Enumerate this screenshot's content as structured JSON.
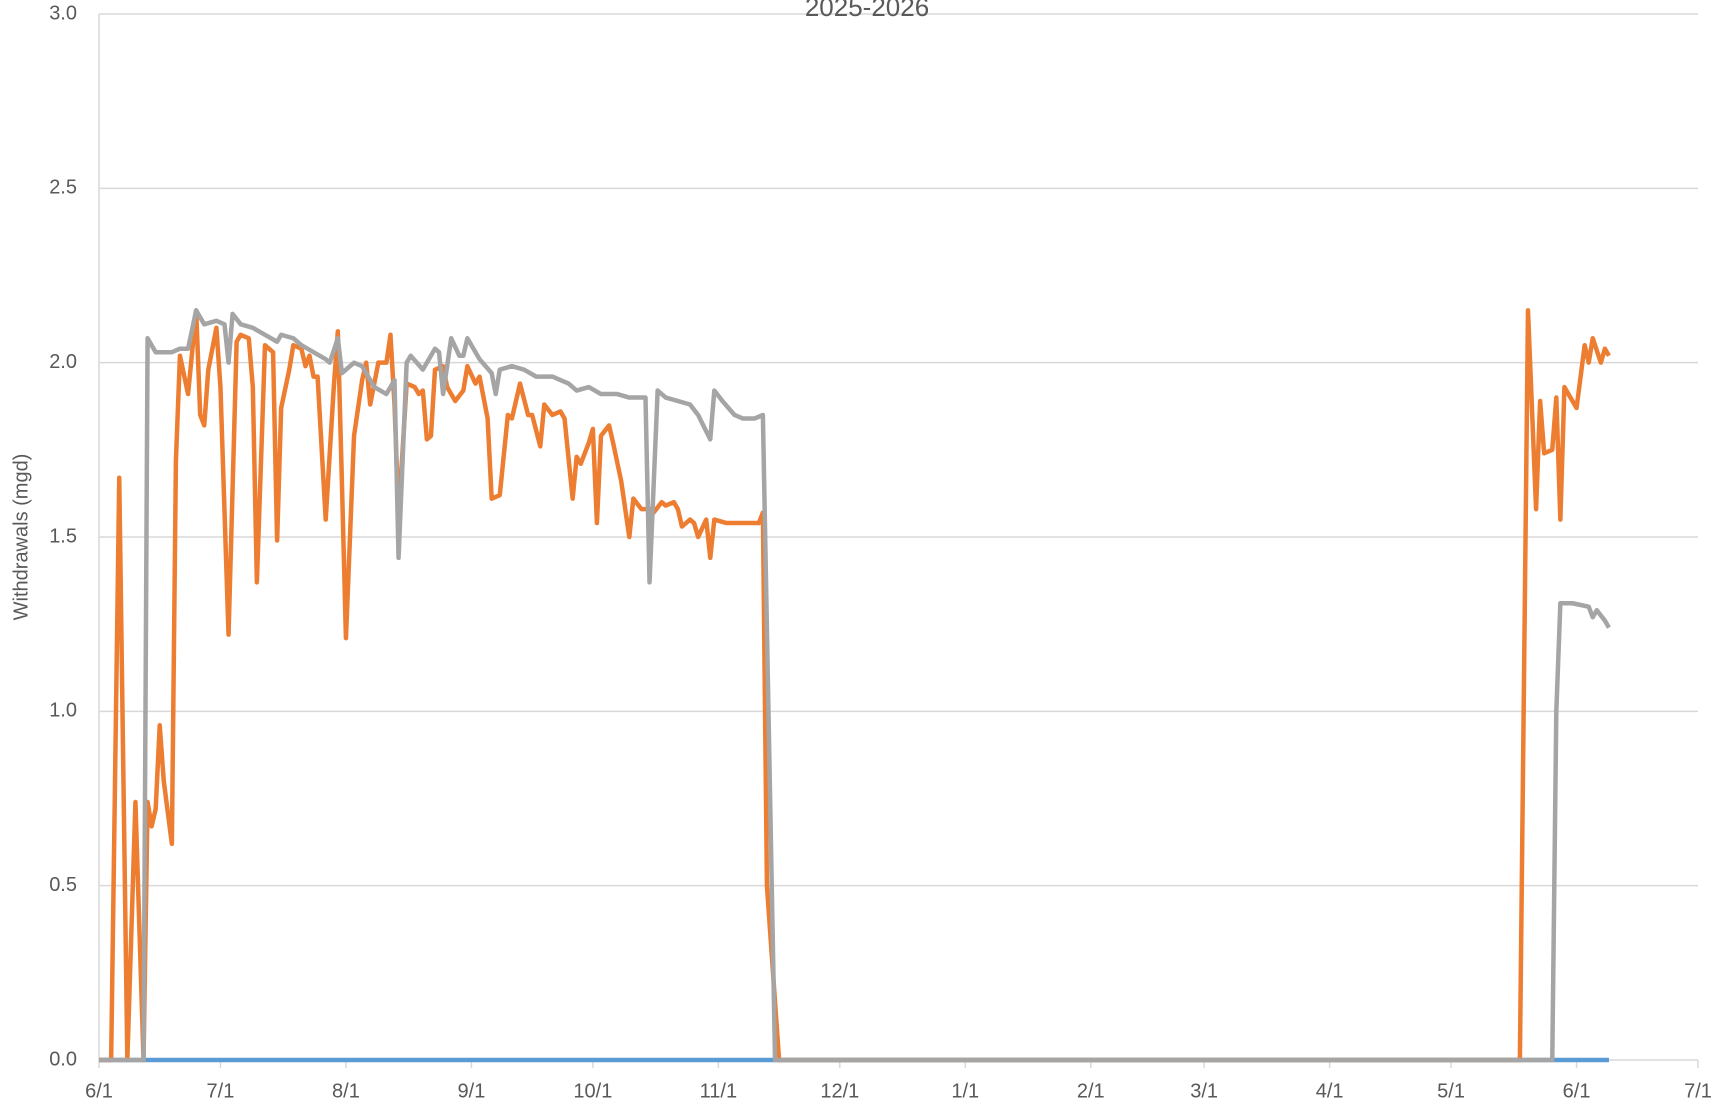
{
  "chart_data": {
    "type": "line",
    "title": "2025-2026",
    "y_label": "Withdrawals (mgd)",
    "xlim": [
      0,
      395
    ],
    "xticks": [
      {
        "value": 0,
        "label": "6/1"
      },
      {
        "value": 30,
        "label": "7/1"
      },
      {
        "value": 61,
        "label": "8/1"
      },
      {
        "value": 92,
        "label": "9/1"
      },
      {
        "value": 122,
        "label": "10/1"
      },
      {
        "value": 153,
        "label": "11/1"
      },
      {
        "value": 183,
        "label": "12/1"
      },
      {
        "value": 214,
        "label": "1/1"
      },
      {
        "value": 245,
        "label": "2/1"
      },
      {
        "value": 273,
        "label": "3/1"
      },
      {
        "value": 304,
        "label": "4/1"
      },
      {
        "value": 334,
        "label": "5/1"
      },
      {
        "value": 365,
        "label": "6/1"
      },
      {
        "value": 395,
        "label": "7/1"
      }
    ],
    "ylim": [
      0,
      3
    ],
    "yticks": [
      {
        "value": 0,
        "label": "0.0"
      },
      0.5,
      {
        "value": 1,
        "label": "1.0"
      },
      1.5,
      {
        "value": 2,
        "label": "2.0"
      },
      2.5,
      {
        "value": 3,
        "label": "3.0"
      }
    ],
    "grid": true,
    "series": [
      {
        "color": "#5b9bd5",
        "x": [
          0,
          373
        ],
        "values": [
          0,
          0
        ]
      },
      {
        "color": "#ed7d31",
        "x": [
          0,
          3,
          5,
          7,
          9,
          11,
          12,
          13,
          14,
          15,
          16,
          18,
          19,
          20,
          22,
          24,
          25,
          26,
          27,
          29,
          30,
          32,
          34,
          35,
          37,
          38,
          39,
          41,
          43,
          44,
          45,
          47,
          48,
          50,
          51,
          52,
          53,
          54,
          56,
          58,
          59,
          60,
          61,
          63,
          65,
          66,
          67,
          69,
          71,
          72,
          73,
          74,
          76,
          78,
          79,
          80,
          81,
          82,
          83,
          85,
          86,
          88,
          90,
          91,
          93,
          94,
          96,
          97,
          99,
          101,
          102,
          104,
          106,
          107,
          109,
          110,
          112,
          114,
          115,
          117,
          118,
          119,
          121,
          122,
          123,
          124,
          126,
          127,
          129,
          131,
          132,
          134,
          136,
          137,
          139,
          140,
          142,
          143,
          144,
          146,
          147,
          148,
          150,
          151,
          152,
          155,
          161,
          163,
          164,
          165,
          168,
          351,
          353,
          355,
          356,
          357,
          359,
          360,
          361,
          362,
          365,
          367,
          368,
          369,
          371,
          372,
          373
        ],
        "values": [
          0,
          0,
          1.67,
          0,
          0.74,
          0,
          0.74,
          0.67,
          0.72,
          0.96,
          0.8,
          0.62,
          1.72,
          2.02,
          1.91,
          2.15,
          1.85,
          1.82,
          1.98,
          2.1,
          1.93,
          1.22,
          2.06,
          2.08,
          2.07,
          1.93,
          1.37,
          2.05,
          2.03,
          1.49,
          1.87,
          1.98,
          2.05,
          2.04,
          1.99,
          2.02,
          1.96,
          1.96,
          1.55,
          1.93,
          2.09,
          1.66,
          1.21,
          1.79,
          1.95,
          2.0,
          1.88,
          2.0,
          2.0,
          2.08,
          1.88,
          1.56,
          1.94,
          1.93,
          1.91,
          1.92,
          1.78,
          1.79,
          1.98,
          1.99,
          1.93,
          1.89,
          1.92,
          1.99,
          1.94,
          1.96,
          1.84,
          1.61,
          1.62,
          1.85,
          1.84,
          1.94,
          1.85,
          1.85,
          1.76,
          1.88,
          1.85,
          1.86,
          1.84,
          1.61,
          1.73,
          1.71,
          1.77,
          1.81,
          1.54,
          1.79,
          1.82,
          1.77,
          1.66,
          1.5,
          1.61,
          1.58,
          1.58,
          1.57,
          1.6,
          1.59,
          1.6,
          1.58,
          1.53,
          1.55,
          1.54,
          1.5,
          1.55,
          1.44,
          1.55,
          1.54,
          1.54,
          1.54,
          1.57,
          0.5,
          0,
          0,
          2.15,
          1.58,
          1.89,
          1.74,
          1.75,
          1.9,
          1.55,
          1.93,
          1.87,
          2.05,
          2.0,
          2.07,
          2.0,
          2.04,
          2.02
        ]
      },
      {
        "color": "#a5a5a5",
        "x": [
          0,
          11,
          12,
          14,
          18,
          20,
          22,
          24,
          26,
          29,
          31,
          32,
          33,
          35,
          38,
          41,
          44,
          45,
          48,
          50,
          53,
          56,
          57,
          59,
          60,
          63,
          65,
          68,
          71,
          73,
          74,
          76,
          77,
          80,
          83,
          84,
          85,
          87,
          89,
          90,
          91,
          94,
          97,
          98,
          99,
          102,
          105,
          108,
          112,
          116,
          118,
          121,
          124,
          128,
          131,
          135,
          136,
          138,
          140,
          143,
          146,
          148,
          151,
          152,
          154,
          157,
          159,
          162,
          164,
          167,
          359,
          360,
          361,
          364,
          368,
          369,
          370,
          372,
          373
        ],
        "values": [
          0,
          0,
          2.07,
          2.03,
          2.03,
          2.04,
          2.04,
          2.15,
          2.11,
          2.12,
          2.11,
          2.0,
          2.14,
          2.11,
          2.1,
          2.08,
          2.06,
          2.08,
          2.07,
          2.05,
          2.03,
          2.01,
          2.0,
          2.07,
          1.97,
          2.0,
          1.99,
          1.93,
          1.91,
          1.95,
          1.44,
          2.0,
          2.02,
          1.98,
          2.04,
          2.03,
          1.91,
          2.07,
          2.02,
          2.02,
          2.07,
          2.01,
          1.97,
          1.91,
          1.98,
          1.99,
          1.98,
          1.96,
          1.96,
          1.94,
          1.92,
          1.93,
          1.91,
          1.91,
          1.9,
          1.9,
          1.37,
          1.92,
          1.9,
          1.89,
          1.88,
          1.85,
          1.78,
          1.92,
          1.89,
          1.85,
          1.84,
          1.84,
          1.85,
          0,
          0,
          1.0,
          1.31,
          1.31,
          1.3,
          1.27,
          1.29,
          1.26,
          1.24
        ]
      }
    ]
  }
}
